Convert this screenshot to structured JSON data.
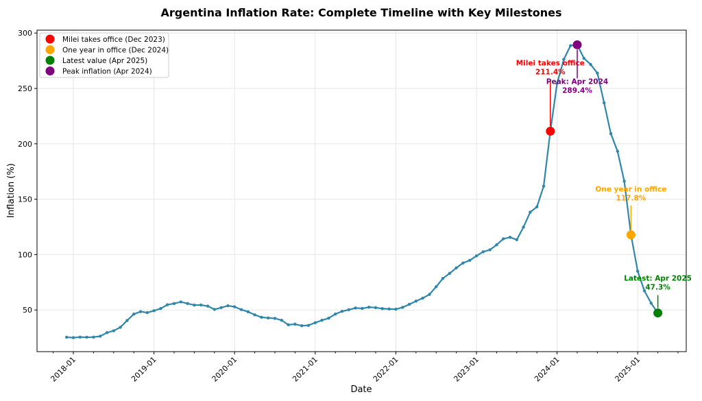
{
  "chart_data": {
    "type": "line",
    "title": "Argentina Inflation Rate: Complete Timeline with Key Milestones",
    "xlabel": "Date",
    "ylabel": "Inflation (%)",
    "ylim": [
      12,
      303
    ],
    "xlim": [
      "2017-08",
      "2025-09"
    ],
    "grid": true,
    "legend_position": "top-left",
    "line_color": "#2e86ab",
    "x_ticks": [
      "2018-01",
      "2019-01",
      "2020-01",
      "2021-01",
      "2022-01",
      "2023-01",
      "2024-01",
      "2025-01"
    ],
    "y_ticks": [
      50,
      100,
      150,
      200,
      250,
      300
    ],
    "start": "2017-12",
    "x": [
      "2017-12",
      "2018-01",
      "2018-02",
      "2018-03",
      "2018-04",
      "2018-05",
      "2018-06",
      "2018-07",
      "2018-08",
      "2018-09",
      "2018-10",
      "2018-11",
      "2018-12",
      "2019-01",
      "2019-02",
      "2019-03",
      "2019-04",
      "2019-05",
      "2019-06",
      "2019-07",
      "2019-08",
      "2019-09",
      "2019-10",
      "2019-11",
      "2019-12",
      "2020-01",
      "2020-02",
      "2020-03",
      "2020-04",
      "2020-05",
      "2020-06",
      "2020-07",
      "2020-08",
      "2020-09",
      "2020-10",
      "2020-11",
      "2020-12",
      "2021-01",
      "2021-02",
      "2021-03",
      "2021-04",
      "2021-05",
      "2021-06",
      "2021-07",
      "2021-08",
      "2021-09",
      "2021-10",
      "2021-11",
      "2021-12",
      "2022-01",
      "2022-02",
      "2022-03",
      "2022-04",
      "2022-05",
      "2022-06",
      "2022-07",
      "2022-08",
      "2022-09",
      "2022-10",
      "2022-11",
      "2022-12",
      "2023-01",
      "2023-02",
      "2023-03",
      "2023-04",
      "2023-05",
      "2023-06",
      "2023-07",
      "2023-08",
      "2023-09",
      "2023-10",
      "2023-11",
      "2023-12",
      "2024-01",
      "2024-02",
      "2024-03",
      "2024-04",
      "2024-05",
      "2024-06",
      "2024-07",
      "2024-08",
      "2024-09",
      "2024-10",
      "2024-11",
      "2024-12",
      "2025-01",
      "2025-02",
      "2025-03",
      "2025-04"
    ],
    "values": [
      25.4,
      25.0,
      25.5,
      25.4,
      25.5,
      26.3,
      29.5,
      31.2,
      34.4,
      40.5,
      46.3,
      48.5,
      47.6,
      49.3,
      51.3,
      54.7,
      55.8,
      57.3,
      55.8,
      54.4,
      54.5,
      53.5,
      50.5,
      52.1,
      53.8,
      52.9,
      50.3,
      48.4,
      45.6,
      43.4,
      42.8,
      42.4,
      40.7,
      36.6,
      37.2,
      35.8,
      36.1,
      38.5,
      40.7,
      42.6,
      46.3,
      48.8,
      50.2,
      51.8,
      51.4,
      52.5,
      52.1,
      51.2,
      50.9,
      50.7,
      52.3,
      55.1,
      58.0,
      60.7,
      64.0,
      71.0,
      78.5,
      83.0,
      88.0,
      92.4,
      94.8,
      98.8,
      102.5,
      104.3,
      108.8,
      114.2,
      115.6,
      113.4,
      124.8,
      138.3,
      143.1,
      161.7,
      211.4,
      254.5,
      276.2,
      288.6,
      289.4,
      277.2,
      271.6,
      263.8,
      237.0,
      209.2,
      193.3,
      166.3,
      117.8,
      85.0,
      67.3,
      56.1,
      47.3
    ],
    "milestones": [
      {
        "legend": "Milei takes office (Dec 2023)",
        "date": "2023-12",
        "value": 211.4,
        "color": "#ff0000",
        "label_1": "Milei takes office",
        "label_2": "211.4%"
      },
      {
        "legend": "One year in office (Dec 2024)",
        "date": "2024-12",
        "value": 117.8,
        "color": "#ffa500",
        "label_1": "One year in office",
        "label_2": "117.8%"
      },
      {
        "legend": "Latest value (Apr 2025)",
        "date": "2025-04",
        "value": 47.3,
        "color": "#008000",
        "label_1": "Latest: Apr 2025",
        "label_2": "47.3%"
      },
      {
        "legend": "Peak inflation (Apr 2024)",
        "date": "2024-04",
        "value": 289.4,
        "color": "#800080",
        "label_1": "Peak: Apr 2024",
        "label_2": "289.4%"
      }
    ]
  }
}
